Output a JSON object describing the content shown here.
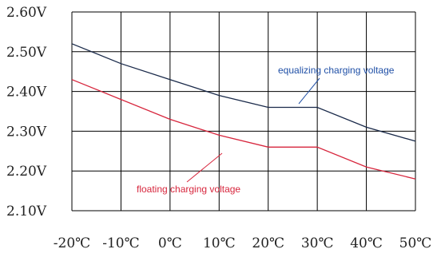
{
  "chart_data": {
    "type": "line",
    "title": "",
    "xlabel": "",
    "ylabel": "",
    "x": [
      -20,
      -10,
      0,
      10,
      20,
      30,
      40,
      50
    ],
    "x_tick_labels": [
      "-20℃",
      "-10℃",
      "0℃",
      "10℃",
      "20℃",
      "30℃",
      "40℃",
      "50℃"
    ],
    "y_tick_labels": [
      "2.60V",
      "2.50V",
      "2.40V",
      "2.30V",
      "2.20V",
      "2.10V"
    ],
    "ylim": [
      2.1,
      2.6
    ],
    "grid": true,
    "series": [
      {
        "name": "equalizing charging voltage",
        "color": "#1a2a4a",
        "label_color": "#1f4fa6",
        "x": [
          -20,
          -10,
          0,
          10,
          20,
          30,
          40,
          50
        ],
        "values": [
          2.52,
          2.47,
          2.43,
          2.39,
          2.36,
          2.36,
          2.31,
          2.275
        ]
      },
      {
        "name": "floating charging voltage",
        "color": "#d7263d",
        "label_color": "#d7263d",
        "x": [
          -20,
          -10,
          0,
          10,
          20,
          30,
          40,
          50
        ],
        "values": [
          2.43,
          2.38,
          2.33,
          2.29,
          2.26,
          2.26,
          2.21,
          2.18
        ]
      }
    ]
  }
}
